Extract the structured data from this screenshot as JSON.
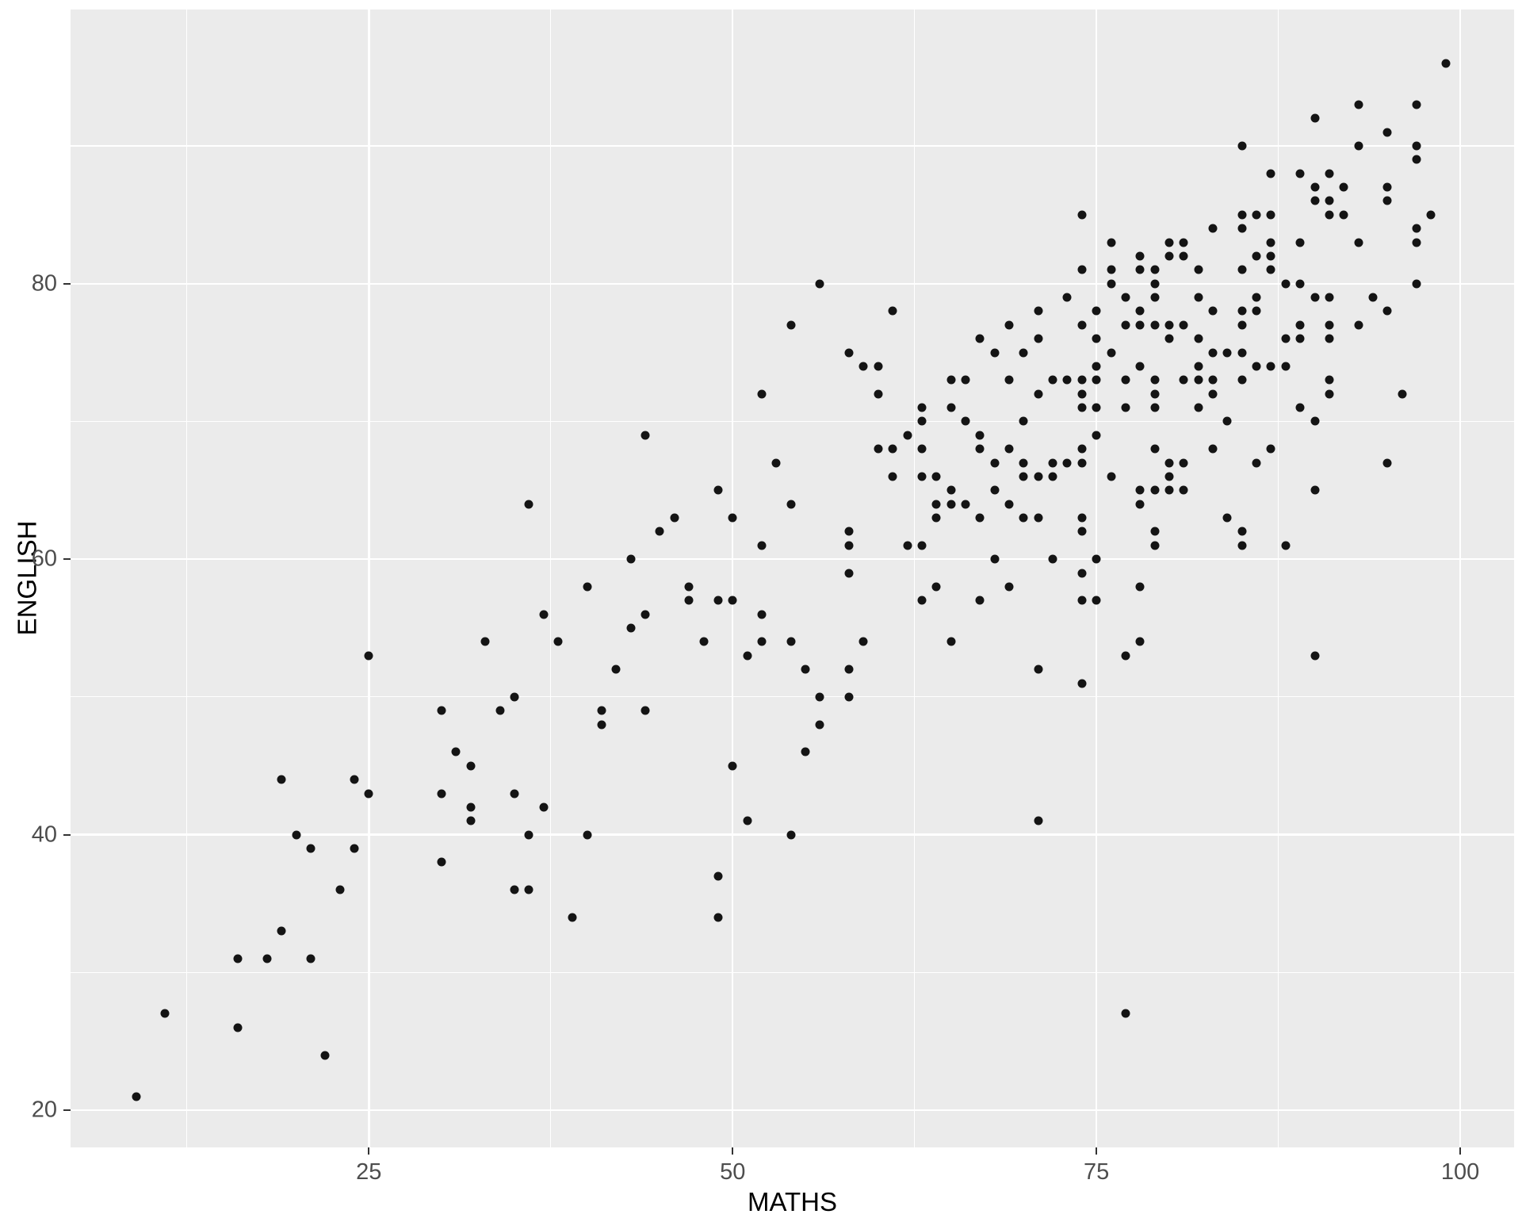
{
  "chart_data": {
    "type": "scatter",
    "title": "",
    "xlabel": "MATHS",
    "ylabel": "ENGLISH",
    "x_ticks": [
      25,
      50,
      75,
      100
    ],
    "y_ticks": [
      20,
      40,
      60,
      80
    ],
    "x_minor": [
      12.5,
      37.5,
      62.5,
      87.5
    ],
    "y_minor": [
      30,
      50,
      70,
      90
    ],
    "xlim": [
      4.5,
      103.7
    ],
    "ylim": [
      17.3,
      99.9
    ],
    "grid": "on",
    "legend": "none",
    "colors": {
      "panel": "#ebebeb",
      "gridline": "#ffffff",
      "point": "#141414",
      "tick_label": "#4d4d4d",
      "axis_title": "#000000",
      "tick_mark": "#333333"
    },
    "points": [
      [
        9,
        21
      ],
      [
        11,
        27
      ],
      [
        16,
        26
      ],
      [
        16,
        31
      ],
      [
        18,
        31
      ],
      [
        19,
        33
      ],
      [
        19,
        44
      ],
      [
        20,
        40
      ],
      [
        21,
        31
      ],
      [
        21,
        39
      ],
      [
        22,
        24
      ],
      [
        23,
        36
      ],
      [
        24,
        39
      ],
      [
        24,
        44
      ],
      [
        25,
        43
      ],
      [
        25,
        53
      ],
      [
        30,
        38
      ],
      [
        30,
        43
      ],
      [
        30,
        49
      ],
      [
        31,
        46
      ],
      [
        32,
        41
      ],
      [
        32,
        42
      ],
      [
        32,
        45
      ],
      [
        33,
        54
      ],
      [
        34,
        49
      ],
      [
        35,
        36
      ],
      [
        35,
        43
      ],
      [
        35,
        50
      ],
      [
        36,
        36
      ],
      [
        36,
        40
      ],
      [
        36,
        64
      ],
      [
        37,
        42
      ],
      [
        37,
        56
      ],
      [
        38,
        54
      ],
      [
        39,
        34
      ],
      [
        40,
        40
      ],
      [
        40,
        58
      ],
      [
        41,
        48
      ],
      [
        41,
        49
      ],
      [
        42,
        52
      ],
      [
        43,
        55
      ],
      [
        43,
        60
      ],
      [
        44,
        49
      ],
      [
        44,
        56
      ],
      [
        44,
        69
      ],
      [
        45,
        62
      ],
      [
        46,
        63
      ],
      [
        47,
        57
      ],
      [
        47,
        58
      ],
      [
        48,
        54
      ],
      [
        49,
        34
      ],
      [
        49,
        37
      ],
      [
        49,
        57
      ],
      [
        49,
        65
      ],
      [
        50,
        45
      ],
      [
        50,
        57
      ],
      [
        50,
        63
      ],
      [
        51,
        41
      ],
      [
        51,
        53
      ],
      [
        52,
        54
      ],
      [
        52,
        56
      ],
      [
        52,
        61
      ],
      [
        52,
        72
      ],
      [
        53,
        67
      ],
      [
        54,
        40
      ],
      [
        54,
        54
      ],
      [
        54,
        64
      ],
      [
        54,
        77
      ],
      [
        55,
        46
      ],
      [
        55,
        52
      ],
      [
        56,
        48
      ],
      [
        56,
        50
      ],
      [
        56,
        80
      ],
      [
        58,
        50
      ],
      [
        58,
        52
      ],
      [
        58,
        59
      ],
      [
        58,
        61
      ],
      [
        58,
        62
      ],
      [
        58,
        75
      ],
      [
        59,
        54
      ],
      [
        59,
        74
      ],
      [
        60,
        68
      ],
      [
        60,
        72
      ],
      [
        60,
        74
      ],
      [
        61,
        66
      ],
      [
        61,
        68
      ],
      [
        61,
        78
      ],
      [
        62,
        61
      ],
      [
        62,
        69
      ],
      [
        63,
        57
      ],
      [
        63,
        61
      ],
      [
        63,
        66
      ],
      [
        63,
        68
      ],
      [
        63,
        70
      ],
      [
        63,
        71
      ],
      [
        64,
        58
      ],
      [
        64,
        63
      ],
      [
        64,
        64
      ],
      [
        64,
        66
      ],
      [
        65,
        54
      ],
      [
        65,
        64
      ],
      [
        65,
        65
      ],
      [
        65,
        71
      ],
      [
        65,
        73
      ],
      [
        66,
        64
      ],
      [
        66,
        70
      ],
      [
        66,
        73
      ],
      [
        67,
        57
      ],
      [
        67,
        63
      ],
      [
        67,
        68
      ],
      [
        67,
        69
      ],
      [
        67,
        76
      ],
      [
        68,
        60
      ],
      [
        68,
        65
      ],
      [
        68,
        67
      ],
      [
        68,
        75
      ],
      [
        69,
        58
      ],
      [
        69,
        64
      ],
      [
        69,
        68
      ],
      [
        69,
        73
      ],
      [
        69,
        77
      ],
      [
        70,
        63
      ],
      [
        70,
        66
      ],
      [
        70,
        67
      ],
      [
        70,
        70
      ],
      [
        70,
        75
      ],
      [
        71,
        41
      ],
      [
        71,
        52
      ],
      [
        71,
        63
      ],
      [
        71,
        66
      ],
      [
        71,
        72
      ],
      [
        71,
        76
      ],
      [
        71,
        78
      ],
      [
        72,
        60
      ],
      [
        72,
        66
      ],
      [
        72,
        67
      ],
      [
        72,
        73
      ],
      [
        73,
        67
      ],
      [
        73,
        73
      ],
      [
        73,
        79
      ],
      [
        74,
        51
      ],
      [
        74,
        57
      ],
      [
        74,
        59
      ],
      [
        74,
        62
      ],
      [
        74,
        63
      ],
      [
        74,
        67
      ],
      [
        74,
        68
      ],
      [
        74,
        71
      ],
      [
        74,
        72
      ],
      [
        74,
        73
      ],
      [
        74,
        77
      ],
      [
        74,
        81
      ],
      [
        74,
        85
      ],
      [
        75,
        57
      ],
      [
        75,
        60
      ],
      [
        75,
        69
      ],
      [
        75,
        71
      ],
      [
        75,
        73
      ],
      [
        75,
        74
      ],
      [
        75,
        76
      ],
      [
        75,
        78
      ],
      [
        76,
        66
      ],
      [
        76,
        75
      ],
      [
        76,
        80
      ],
      [
        76,
        81
      ],
      [
        76,
        83
      ],
      [
        77,
        27
      ],
      [
        77,
        53
      ],
      [
        77,
        71
      ],
      [
        77,
        73
      ],
      [
        77,
        77
      ],
      [
        77,
        79
      ],
      [
        78,
        54
      ],
      [
        78,
        58
      ],
      [
        78,
        64
      ],
      [
        78,
        65
      ],
      [
        78,
        74
      ],
      [
        78,
        77
      ],
      [
        78,
        78
      ],
      [
        78,
        81
      ],
      [
        78,
        82
      ],
      [
        79,
        61
      ],
      [
        79,
        62
      ],
      [
        79,
        65
      ],
      [
        79,
        68
      ],
      [
        79,
        71
      ],
      [
        79,
        72
      ],
      [
        79,
        73
      ],
      [
        79,
        77
      ],
      [
        79,
        79
      ],
      [
        79,
        80
      ],
      [
        79,
        81
      ],
      [
        80,
        65
      ],
      [
        80,
        66
      ],
      [
        80,
        67
      ],
      [
        80,
        76
      ],
      [
        80,
        77
      ],
      [
        80,
        82
      ],
      [
        80,
        83
      ],
      [
        81,
        65
      ],
      [
        81,
        67
      ],
      [
        81,
        73
      ],
      [
        81,
        77
      ],
      [
        81,
        82
      ],
      [
        81,
        83
      ],
      [
        82,
        71
      ],
      [
        82,
        73
      ],
      [
        82,
        74
      ],
      [
        82,
        76
      ],
      [
        82,
        79
      ],
      [
        82,
        81
      ],
      [
        83,
        68
      ],
      [
        83,
        72
      ],
      [
        83,
        73
      ],
      [
        83,
        75
      ],
      [
        83,
        78
      ],
      [
        83,
        84
      ],
      [
        84,
        63
      ],
      [
        84,
        70
      ],
      [
        84,
        75
      ],
      [
        85,
        61
      ],
      [
        85,
        62
      ],
      [
        85,
        73
      ],
      [
        85,
        75
      ],
      [
        85,
        77
      ],
      [
        85,
        78
      ],
      [
        85,
        81
      ],
      [
        85,
        84
      ],
      [
        85,
        85
      ],
      [
        85,
        90
      ],
      [
        86,
        67
      ],
      [
        86,
        74
      ],
      [
        86,
        78
      ],
      [
        86,
        79
      ],
      [
        86,
        82
      ],
      [
        86,
        85
      ],
      [
        87,
        68
      ],
      [
        87,
        74
      ],
      [
        87,
        81
      ],
      [
        87,
        82
      ],
      [
        87,
        83
      ],
      [
        87,
        85
      ],
      [
        87,
        88
      ],
      [
        88,
        61
      ],
      [
        88,
        74
      ],
      [
        88,
        76
      ],
      [
        88,
        80
      ],
      [
        89,
        71
      ],
      [
        89,
        76
      ],
      [
        89,
        77
      ],
      [
        89,
        80
      ],
      [
        89,
        83
      ],
      [
        89,
        88
      ],
      [
        90,
        53
      ],
      [
        90,
        65
      ],
      [
        90,
        70
      ],
      [
        90,
        79
      ],
      [
        90,
        86
      ],
      [
        90,
        87
      ],
      [
        90,
        92
      ],
      [
        91,
        72
      ],
      [
        91,
        73
      ],
      [
        91,
        76
      ],
      [
        91,
        77
      ],
      [
        91,
        79
      ],
      [
        91,
        85
      ],
      [
        91,
        86
      ],
      [
        91,
        88
      ],
      [
        92,
        85
      ],
      [
        92,
        87
      ],
      [
        93,
        77
      ],
      [
        93,
        83
      ],
      [
        93,
        90
      ],
      [
        93,
        93
      ],
      [
        94,
        79
      ],
      [
        95,
        67
      ],
      [
        95,
        78
      ],
      [
        95,
        86
      ],
      [
        95,
        87
      ],
      [
        95,
        91
      ],
      [
        96,
        72
      ],
      [
        97,
        80
      ],
      [
        97,
        83
      ],
      [
        97,
        84
      ],
      [
        97,
        89
      ],
      [
        97,
        90
      ],
      [
        97,
        93
      ],
      [
        98,
        85
      ],
      [
        99,
        96
      ]
    ]
  }
}
